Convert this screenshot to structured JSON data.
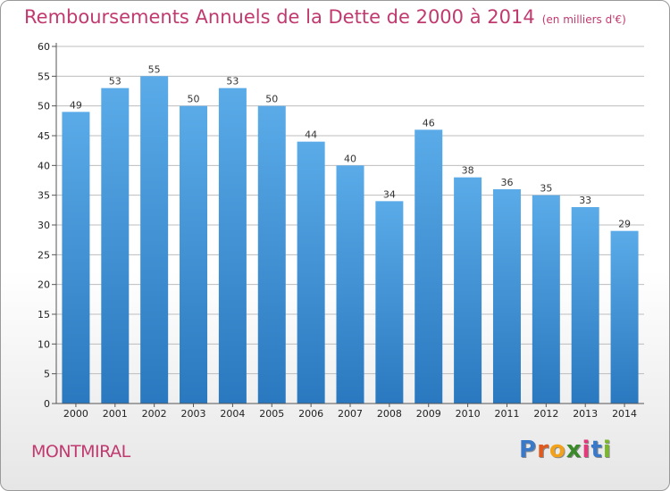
{
  "title": "Remboursements Annuels de la Dette de 2000 à 2014",
  "unit_note": "(en milliers d'€)",
  "place_name": "MONTMIRAL",
  "brand": {
    "text": "Proxiti",
    "letters": [
      "P",
      "r",
      "o",
      "x",
      "i",
      "t",
      "i"
    ],
    "colors": [
      "#3a78c8",
      "#e05a1e",
      "#f2a21a",
      "#3a8a2a",
      "#e23a7a",
      "#3a78c8",
      "#7ab82a"
    ]
  },
  "colors": {
    "accent": "#c13a6f",
    "bar_top": "#5aabe8",
    "bar_bottom": "#2a78bf",
    "grid": "#bdbdbd"
  },
  "chart_data": {
    "type": "bar",
    "title": "Remboursements Annuels de la Dette de 2000 à 2014",
    "xlabel": "",
    "ylabel": "",
    "ylim": [
      0,
      60
    ],
    "yticks": [
      0,
      5,
      10,
      15,
      20,
      25,
      30,
      35,
      40,
      45,
      50,
      55,
      60
    ],
    "grid": true,
    "categories": [
      "2000",
      "2001",
      "2002",
      "2003",
      "2004",
      "2005",
      "2006",
      "2007",
      "2008",
      "2009",
      "2010",
      "2011",
      "2012",
      "2013",
      "2014"
    ],
    "values": [
      49,
      53,
      55,
      50,
      53,
      50,
      44,
      40,
      34,
      46,
      38,
      36,
      35,
      33,
      29
    ]
  }
}
